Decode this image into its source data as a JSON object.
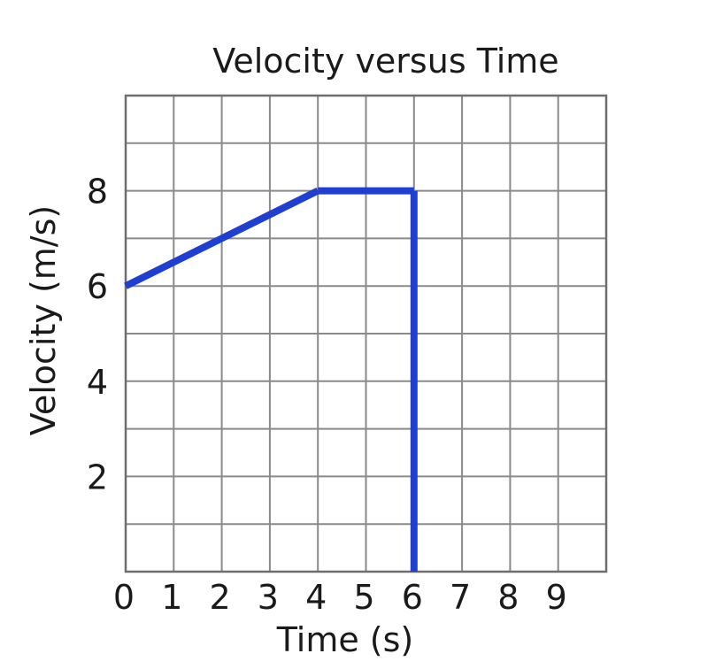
{
  "chart_data": {
    "type": "line",
    "title": "Velocity versus Time",
    "xlabel": "Time (s)",
    "ylabel": "Velocity (m/s)",
    "xlim": [
      0,
      10
    ],
    "ylim": [
      0,
      10
    ],
    "x_ticks": [
      0,
      1,
      2,
      3,
      4,
      5,
      6,
      7,
      8,
      9
    ],
    "y_ticks": [
      2,
      4,
      6,
      8
    ],
    "grid": true,
    "series": [
      {
        "color": "#1f3fd1",
        "points": [
          [
            0,
            6
          ],
          [
            4,
            8
          ],
          [
            6,
            8
          ],
          [
            6,
            0
          ]
        ]
      }
    ]
  }
}
